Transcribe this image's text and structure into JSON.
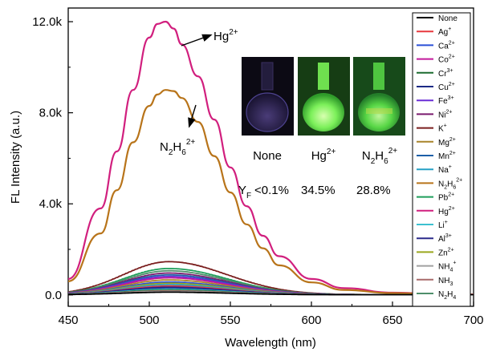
{
  "chart_data": {
    "type": "line",
    "xlabel": "Wavelength (nm)",
    "ylabel": "FL Intensity (a.u.)",
    "xlim": [
      450,
      700
    ],
    "ylim": [
      -500,
      12600
    ],
    "x_ticks": [
      "450",
      "500",
      "550",
      "600",
      "650",
      "700"
    ],
    "y_ticks": [
      "0.0",
      "4.0k",
      "8.0k",
      "12.0k"
    ],
    "legend_position": "right",
    "legend": [
      {
        "label": "None",
        "base": "None",
        "sup": "",
        "sub": "",
        "color": "#000000"
      },
      {
        "label": "Ag+",
        "base": "Ag",
        "sup": "+",
        "sub": "",
        "color": "#e8383d"
      },
      {
        "label": "Ca2+",
        "base": "Ca",
        "sup": "2+",
        "sub": "",
        "color": "#2a4fd6"
      },
      {
        "label": "Co2+",
        "base": "Co",
        "sup": "2+",
        "sub": "",
        "color": "#c2189a"
      },
      {
        "label": "Cr3+",
        "base": "Cr",
        "sup": "3+",
        "sub": "",
        "color": "#1b6b2f"
      },
      {
        "label": "Cu2+",
        "base": "Cu",
        "sup": "2+",
        "sub": "",
        "color": "#1c2a86"
      },
      {
        "label": "Fe3+",
        "base": "Fe",
        "sup": "3+",
        "sub": "",
        "color": "#6a2fd6"
      },
      {
        "label": "Ni2+",
        "base": "Ni",
        "sup": "2+",
        "sub": "",
        "color": "#7a1a6e"
      },
      {
        "label": "K+",
        "base": "K",
        "sup": "+",
        "sub": "",
        "color": "#7a1e1e"
      },
      {
        "label": "Mg2+",
        "base": "Mg",
        "sup": "2+",
        "sub": "",
        "color": "#a8842a"
      },
      {
        "label": "Mn2+",
        "base": "Mn",
        "sup": "2+",
        "sub": "",
        "color": "#1d5fa8"
      },
      {
        "label": "Na+",
        "base": "Na",
        "sup": "+",
        "sub": "",
        "color": "#26a0c6"
      },
      {
        "label": "N2H62+",
        "base": "N",
        "sup": "2+",
        "sub": "2H6",
        "color": "#b8741a"
      },
      {
        "label": "Pb2+",
        "base": "Pb",
        "sup": "2+",
        "sub": "",
        "color": "#1e9e5a"
      },
      {
        "label": "Hg2+",
        "base": "Hg",
        "sup": "2+",
        "sub": "",
        "color": "#d11f7e"
      },
      {
        "label": "Li+",
        "base": "Li",
        "sup": "+",
        "sub": "",
        "color": "#3cc0d0"
      },
      {
        "label": "Al3+",
        "base": "Al",
        "sup": "3+",
        "sub": "",
        "color": "#2b2a8c"
      },
      {
        "label": "Zn2+",
        "base": "Zn",
        "sup": "2+",
        "sub": "",
        "color": "#9aa81e"
      },
      {
        "label": "NH4+",
        "base": "NH",
        "sup": "+",
        "sub": "4",
        "color": "#a0a0a0"
      },
      {
        "label": "NH3",
        "base": "NH",
        "sup": "",
        "sub": "3",
        "color": "#a86a6a"
      },
      {
        "label": "N2H4",
        "base": "N",
        "sup": "",
        "sub": "2H4",
        "color": "#4e8e6a"
      }
    ],
    "series": [
      {
        "name": "Hg2+",
        "color": "#d11f7e",
        "peak_x": 510,
        "peak_y": 12000,
        "x": [
          450,
          470,
          480,
          490,
          500,
          505,
          510,
          515,
          520,
          530,
          540,
          550,
          560,
          570,
          580,
          600,
          620,
          650,
          680,
          700
        ],
        "y": [
          700,
          3800,
          6300,
          9000,
          11300,
          11900,
          12000,
          11700,
          11000,
          9600,
          7700,
          5600,
          3900,
          2600,
          1700,
          700,
          300,
          100,
          40,
          20
        ]
      },
      {
        "name": "N2H62+",
        "color": "#b8741a",
        "peak_x": 512,
        "peak_y": 9000,
        "x": [
          450,
          470,
          480,
          490,
          500,
          505,
          510,
          515,
          520,
          530,
          540,
          550,
          560,
          570,
          580,
          600,
          620,
          650,
          680,
          700
        ],
        "y": [
          600,
          2700,
          4600,
          6700,
          8300,
          8800,
          9000,
          8950,
          8650,
          7600,
          6100,
          4500,
          3100,
          2050,
          1300,
          550,
          220,
          80,
          30,
          15
        ]
      },
      {
        "name": "K+",
        "color": "#7a1e1e",
        "peak_x": 512,
        "peak_y": 1450
      },
      {
        "name": "Pb2+",
        "color": "#1e9e5a",
        "peak_x": 512,
        "peak_y": 1150
      },
      {
        "name": "N2H4",
        "color": "#4e8e6a",
        "peak_x": 512,
        "peak_y": 1050
      },
      {
        "name": "Ni2+",
        "color": "#7a1a6e",
        "peak_x": 512,
        "peak_y": 950
      },
      {
        "name": "Mn2+",
        "color": "#1d5fa8",
        "peak_x": 512,
        "peak_y": 870
      },
      {
        "name": "Fe3+",
        "color": "#6a2fd6",
        "peak_x": 512,
        "peak_y": 800
      },
      {
        "name": "Co2+",
        "color": "#c2189a",
        "peak_x": 512,
        "peak_y": 740
      },
      {
        "name": "Mg2+",
        "color": "#a8842a",
        "peak_x": 512,
        "peak_y": 650
      },
      {
        "name": "Ca2+",
        "color": "#2a4fd6",
        "peak_x": 512,
        "peak_y": 560
      },
      {
        "name": "Zn2+",
        "color": "#9aa81e",
        "peak_x": 512,
        "peak_y": 500
      },
      {
        "name": "Na+",
        "color": "#26a0c6",
        "peak_x": 512,
        "peak_y": 440
      },
      {
        "name": "Ag+",
        "color": "#e8383d",
        "peak_x": 512,
        "peak_y": 380
      },
      {
        "name": "Al3+",
        "color": "#2b2a8c",
        "peak_x": 512,
        "peak_y": 330
      },
      {
        "name": "Cu2+",
        "color": "#1c2a86",
        "peak_x": 512,
        "peak_y": 280
      },
      {
        "name": "Li+",
        "color": "#3cc0d0",
        "peak_x": 512,
        "peak_y": 240
      },
      {
        "name": "Cr3+",
        "color": "#1b6b2f",
        "peak_x": 512,
        "peak_y": 200
      },
      {
        "name": "NH3",
        "color": "#a86a6a",
        "peak_x": 512,
        "peak_y": 170
      },
      {
        "name": "NH4+",
        "color": "#a0a0a0",
        "peak_x": 512,
        "peak_y": 140
      },
      {
        "name": "None",
        "color": "#000000",
        "peak_x": 512,
        "peak_y": 110
      }
    ],
    "annotations": {
      "hg": {
        "base": "Hg",
        "sup": "2+"
      },
      "n2h6": {
        "base": "N",
        "sub1": "2",
        "mid": "H",
        "sub2": "6",
        "sup": "2+"
      }
    },
    "inset": {
      "labels": [
        {
          "base": "None",
          "sub1": "",
          "mid": "",
          "sub2": "",
          "sup": ""
        },
        {
          "base": "Hg",
          "sub1": "",
          "mid": "",
          "sub2": "",
          "sup": "2+"
        },
        {
          "base": "N",
          "sub1": "2",
          "mid": "H",
          "sub2": "6",
          "sup": "2+"
        }
      ],
      "yield_symbol": "Y",
      "yield_sub": "F",
      "yields": [
        "<0.1%",
        "34.5%",
        "28.8%"
      ]
    }
  }
}
